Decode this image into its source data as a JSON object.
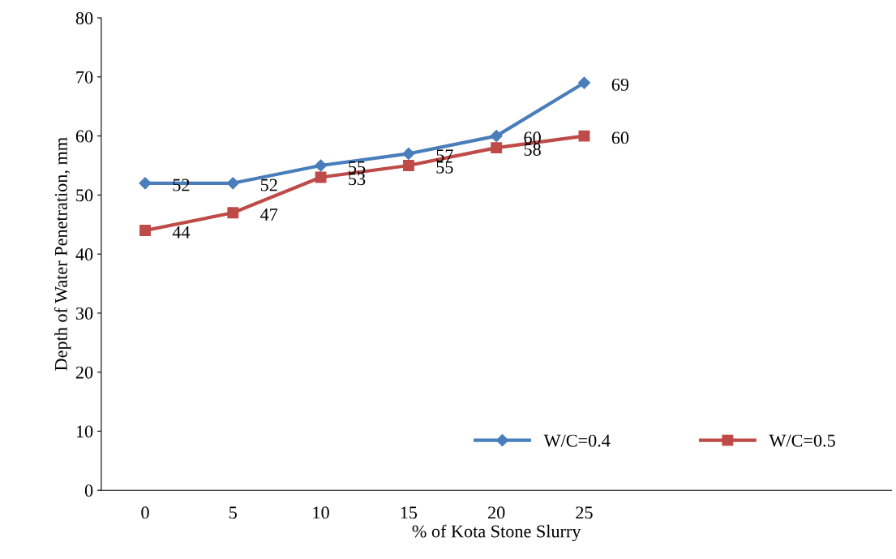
{
  "chart_data": {
    "type": "line",
    "xlabel": "% of Kota Stone Slurry",
    "ylabel": "Depth of Water Penetration, mm",
    "categories": [
      "0",
      "5",
      "10",
      "15",
      "20",
      "25",
      null,
      null,
      null
    ],
    "series": [
      {
        "name": "W/C=0.4",
        "color": "#4a7ebb",
        "marker": "diamond",
        "values": [
          52,
          52,
          55,
          57,
          60,
          69,
          null,
          null,
          null
        ]
      },
      {
        "name": "W/C=0.5",
        "color": "#be4b48",
        "marker": "square",
        "values": [
          44,
          47,
          53,
          55,
          58,
          60,
          null,
          null,
          null
        ]
      }
    ],
    "ylim": [
      0,
      80
    ],
    "yticks": [
      0,
      10,
      20,
      30,
      40,
      50,
      60,
      70,
      80
    ],
    "grid": false,
    "legend": "bottom right",
    "data_labels": true
  }
}
